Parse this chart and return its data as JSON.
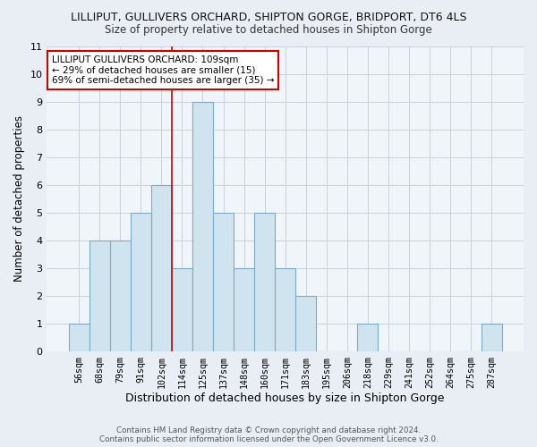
{
  "title": "LILLIPUT, GULLIVERS ORCHARD, SHIPTON GORGE, BRIDPORT, DT6 4LS",
  "subtitle": "Size of property relative to detached houses in Shipton Gorge",
  "xlabel": "Distribution of detached houses by size in Shipton Gorge",
  "ylabel": "Number of detached properties",
  "categories": [
    "56sqm",
    "68sqm",
    "79sqm",
    "91sqm",
    "102sqm",
    "114sqm",
    "125sqm",
    "137sqm",
    "148sqm",
    "160sqm",
    "171sqm",
    "183sqm",
    "195sqm",
    "206sqm",
    "218sqm",
    "229sqm",
    "241sqm",
    "252sqm",
    "264sqm",
    "275sqm",
    "287sqm"
  ],
  "values": [
    1,
    4,
    4,
    5,
    6,
    3,
    9,
    5,
    3,
    5,
    3,
    2,
    0,
    0,
    1,
    0,
    0,
    0,
    0,
    0,
    1
  ],
  "bar_color": "#d0e4f0",
  "bar_edge_color": "#7aaac8",
  "vline_x": 4.5,
  "annotation_title": "LILLIPUT GULLIVERS ORCHARD: 109sqm",
  "annotation_line1": "← 29% of detached houses are smaller (15)",
  "annotation_line2": "69% of semi-detached houses are larger (35) →",
  "annotation_box_color": "#ffffff",
  "annotation_box_edge_color": "#cc0000",
  "ylim": [
    0,
    11
  ],
  "yticks": [
    0,
    1,
    2,
    3,
    4,
    5,
    6,
    7,
    8,
    9,
    10,
    11
  ],
  "footer1": "Contains HM Land Registry data © Crown copyright and database right 2024.",
  "footer2": "Contains public sector information licensed under the Open Government Licence v3.0.",
  "bg_color": "#e8eef4",
  "plot_bg_color": "#f0f5f9",
  "grid_color": "#c8d0d8",
  "title_fontsize": 9,
  "subtitle_fontsize": 8.5
}
